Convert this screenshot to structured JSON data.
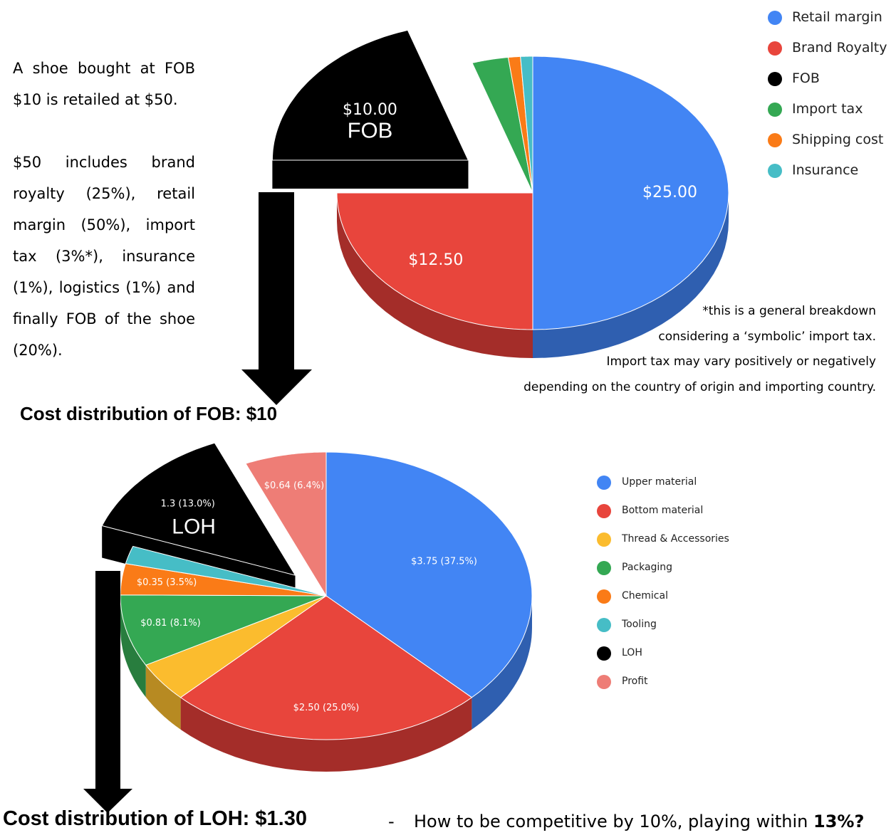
{
  "intro": {
    "para1": "A shoe bought at FOB $10 is retailed at $50.",
    "para2": "$50 includes brand royalty (25%), retail margin (50%), import tax (3%*), insurance (1%), logistics (1%) and finally FOB of the shoe (20%)."
  },
  "note": {
    "line1": "*this is a general breakdown",
    "line2": "considering a ‘symbolic’ import tax.",
    "line3": "Import tax may vary positively or negatively",
    "line4": "depending on the country of origin and importing country."
  },
  "headings": {
    "fob": "Cost distribution of FOB: $10",
    "loh": "Cost distribution of LOH: $1.30"
  },
  "question": {
    "dash": "-",
    "text": "How to be competitive by 10%, playing within ",
    "bold": "13%?"
  },
  "chart_data": [
    {
      "type": "pie",
      "title": "",
      "exploded_callout": "FOB",
      "legend_position": "top-right",
      "slices": [
        {
          "name": "Retail margin",
          "value": 25.0,
          "label": "$25.00",
          "color": "#4285f4",
          "side": "#2f5fb0"
        },
        {
          "name": "Brand Royalty",
          "value": 12.5,
          "label": "$12.50",
          "color": "#e8453c",
          "side": "#a42d29"
        },
        {
          "name": "FOB",
          "value": 10.0,
          "label": "$10.00",
          "color": "#000000",
          "side": "#000000"
        },
        {
          "name": "Import tax",
          "value": 1.5,
          "label": "",
          "color": "#34a853",
          "side": "#287d3e"
        },
        {
          "name": "Shipping cost",
          "value": 0.5,
          "label": "",
          "color": "#fa7b17",
          "side": "#b85a12"
        },
        {
          "name": "Insurance",
          "value": 0.5,
          "label": "",
          "color": "#46bdc6",
          "side": "#338a91"
        }
      ]
    },
    {
      "type": "pie",
      "title": "",
      "exploded_callout": "LOH",
      "legend_position": "right",
      "slices": [
        {
          "name": "Upper material",
          "value": 3.75,
          "label": "$3.75 (37.5%)",
          "color": "#4285f4",
          "side": "#2f5fb0"
        },
        {
          "name": "Bottom material",
          "value": 2.5,
          "label": "$2.50 (25.0%)",
          "color": "#e8453c",
          "side": "#a42d29"
        },
        {
          "name": "Thread & Accessories",
          "value": 0.45,
          "label": "",
          "color": "#fbbc2e",
          "side": "#b78a22"
        },
        {
          "name": "Packaging",
          "value": 0.81,
          "label": "$0.81 (8.1%)",
          "color": "#34a853",
          "side": "#287d3e"
        },
        {
          "name": "Chemical",
          "value": 0.35,
          "label": "$0.35 (3.5%)",
          "color": "#fa7b17",
          "side": "#b85a12"
        },
        {
          "name": "Tooling",
          "value": 0.2,
          "label": "",
          "color": "#46bdc6",
          "side": "#338a91"
        },
        {
          "name": "LOH",
          "value": 1.3,
          "label": "1.3 (13.0%)",
          "color": "#000000",
          "side": "#000000"
        },
        {
          "name": "Profit",
          "value": 0.64,
          "label": "$0.64 (6.4%)",
          "color": "#ee7d76",
          "side": "#a45550"
        }
      ]
    }
  ]
}
